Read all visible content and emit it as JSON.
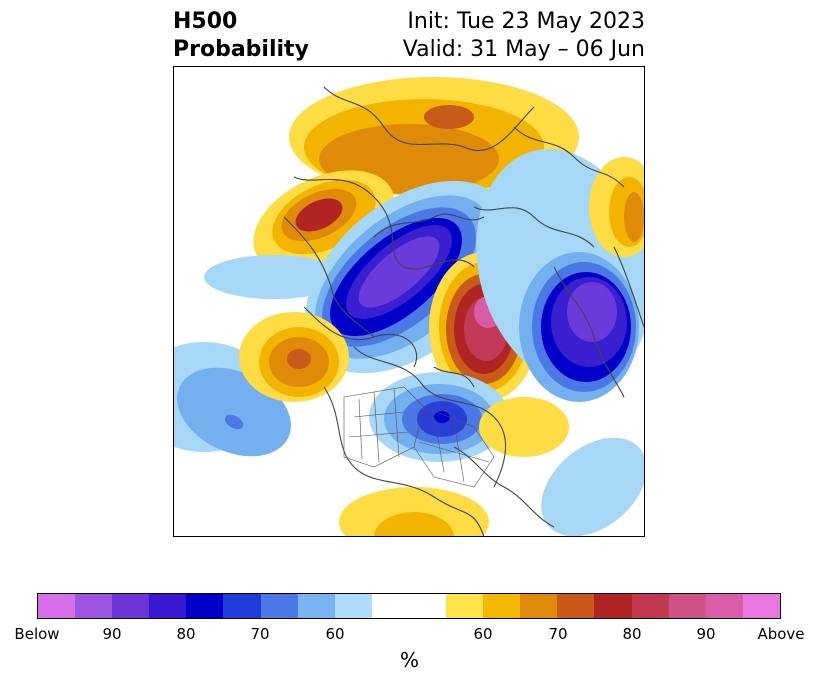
{
  "header": {
    "title_line1": "H500",
    "title_line2": "Probability",
    "init_text": "Init: Tue 23 May 2023",
    "valid_text": "Valid: 31 May – 06 Jun"
  },
  "map": {
    "projection": "north-polar-stereographic",
    "below_colors": [
      "#a7d7f7",
      "#74b0f0",
      "#4a78e4",
      "#2a3fd7",
      "#0000c8",
      "#3a1fd0",
      "#6a3ada"
    ],
    "above_colors": [
      "#fddc44",
      "#f2b400",
      "#e08a0a",
      "#c85a1a",
      "#b02424",
      "#c23a58",
      "#da5ba5"
    ]
  },
  "colorbar": {
    "segments": [
      "#d56ee8",
      "#9b55e0",
      "#6b35d8",
      "#3a18d2",
      "#0000c8",
      "#1f3bdc",
      "#4d79e8",
      "#79b3f2",
      "#aedcfa",
      "#ffffff",
      "#ffffff",
      "#fde24a",
      "#f4b800",
      "#e08a0c",
      "#c9581a",
      "#b12424",
      "#c1384f",
      "#cd5384",
      "#d95da8",
      "#e878e0"
    ],
    "tick_labels": [
      "Below",
      "90",
      "80",
      "70",
      "60",
      "60",
      "70",
      "80",
      "90",
      "Above"
    ],
    "label": "%"
  }
}
